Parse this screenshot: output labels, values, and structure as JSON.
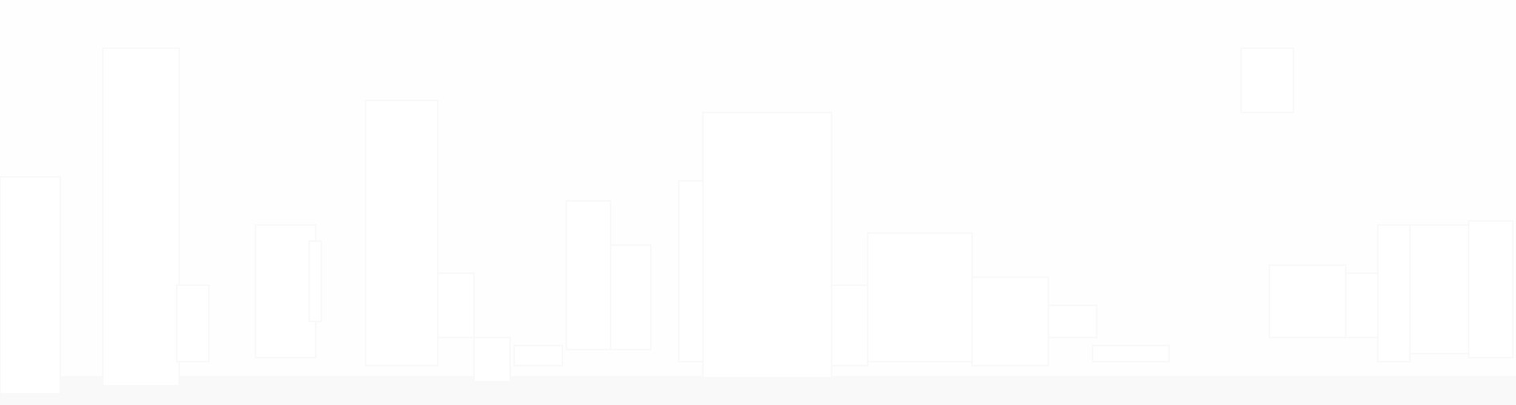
{
  "scene": {
    "background_color": "#fefefe",
    "shape_color": "#ffffff",
    "outline_color": "#f9f9f9",
    "shadow_color": "#f2f2f2",
    "icon": "city-skyline-silhouette"
  }
}
